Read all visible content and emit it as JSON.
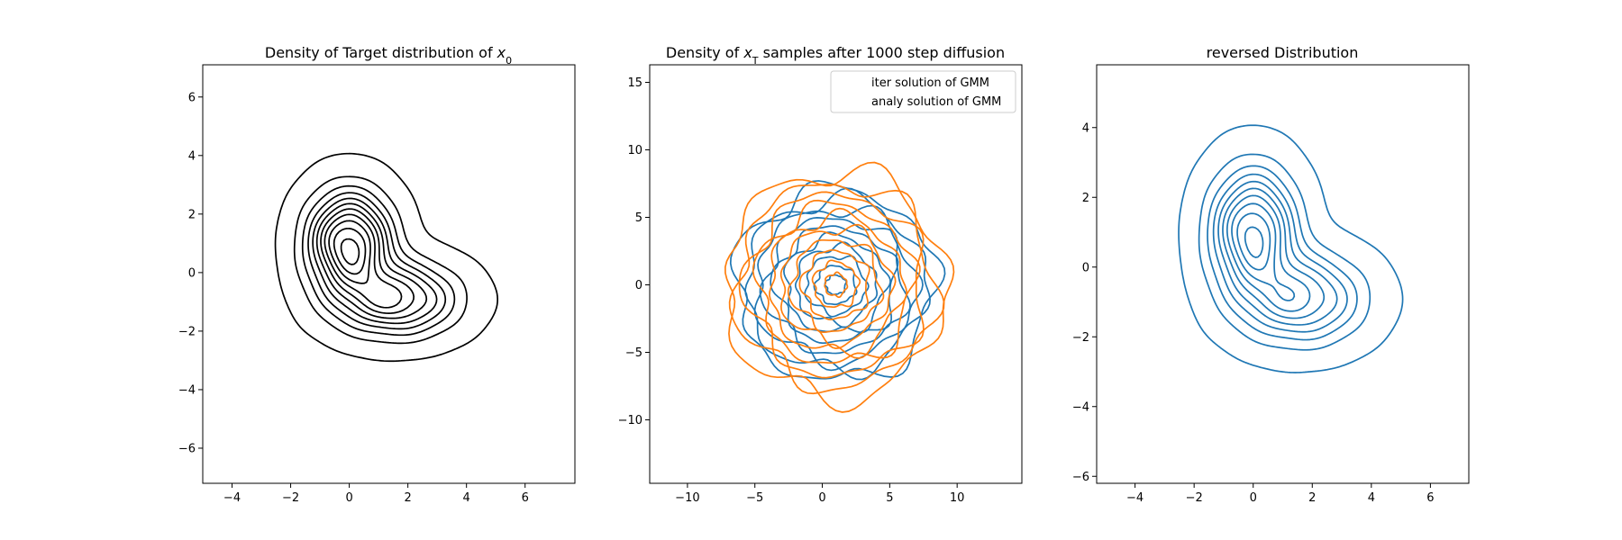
{
  "chart_data": [
    {
      "type": "contour",
      "title_prefix": "Density of Target distribution of ",
      "title_math": "x",
      "title_sub": "0",
      "xlim": [
        -5.0,
        7.7
      ],
      "ylim": [
        -7.2,
        7.1
      ],
      "xticks": [
        -4,
        -2,
        0,
        2,
        4,
        6
      ],
      "yticks": [
        -6,
        -4,
        -2,
        0,
        2,
        4,
        6
      ],
      "colors": [
        "#000000"
      ],
      "contour_levels": 11,
      "density_modes": [
        {
          "mean": [
            0.0,
            1.0
          ],
          "sd": [
            0.9,
            1.1
          ],
          "weight": 0.6
        },
        {
          "mean": [
            1.6,
            -0.9
          ],
          "sd": [
            1.3,
            0.8
          ],
          "weight": 0.4
        }
      ],
      "support_extent": {
        "x": [
          -2.8,
          5.1
        ],
        "y": [
          -3.6,
          3.6
        ]
      }
    },
    {
      "type": "contour",
      "title_prefix": "Density of ",
      "title_math": "x",
      "title_sub": "T",
      "title_suffix": " samples after 1000 step diffusion",
      "xlim": [
        -12.8,
        14.8
      ],
      "ylim": [
        -14.7,
        16.3
      ],
      "xticks": [
        -10,
        -5,
        0,
        5,
        10
      ],
      "yticks": [
        -10,
        -5,
        0,
        5,
        10,
        15
      ],
      "legend": {
        "placement": "top-right",
        "entries": [
          "iter solution of GMM",
          "analy solution of GMM"
        ]
      },
      "series": [
        {
          "name": "iter solution of GMM",
          "color": "#1f77b4",
          "center": [
            1.0,
            0.0
          ],
          "outer_radius": [
            7.4,
            7.1
          ],
          "levels": 10
        },
        {
          "name": "analy solution of GMM",
          "color": "#ff7f0e",
          "center": [
            1.0,
            0.0
          ],
          "outer_radius": [
            8.2,
            8.4
          ],
          "levels": 10
        }
      ]
    },
    {
      "type": "contour",
      "title_prefix": "reversed Distribution",
      "xlim": [
        -5.3,
        7.3
      ],
      "ylim": [
        -6.2,
        5.8
      ],
      "xticks": [
        -4,
        -2,
        0,
        2,
        4,
        6
      ],
      "yticks": [
        -6,
        -4,
        -2,
        0,
        2,
        4
      ],
      "colors": [
        "#1f77b4"
      ],
      "contour_levels": 10,
      "density_modes": [
        {
          "mean": [
            0.0,
            1.0
          ],
          "sd": [
            0.9,
            1.1
          ],
          "weight": 0.6
        },
        {
          "mean": [
            1.6,
            -0.9
          ],
          "sd": [
            1.3,
            0.8
          ],
          "weight": 0.4
        }
      ],
      "support_extent": {
        "x": [
          -2.7,
          5.0
        ],
        "y": [
          -3.2,
          3.6
        ]
      }
    }
  ]
}
